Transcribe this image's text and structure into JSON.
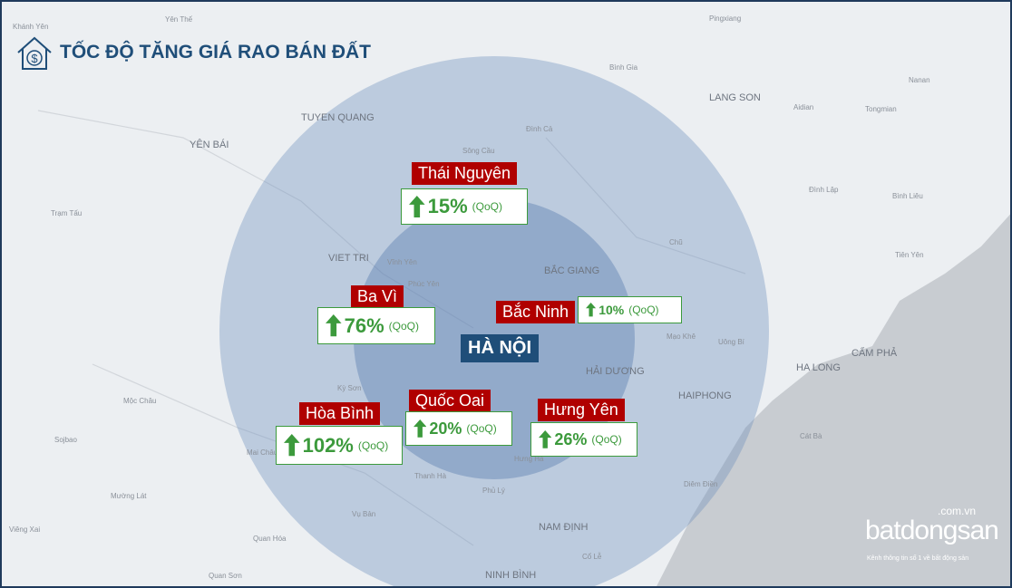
{
  "header": {
    "title": "TỐC ĐỘ TĂNG GIÁ RAO BÁN ĐẤT",
    "icon_symbol": "$"
  },
  "center_label": "HÀ NỘI",
  "regions": [
    {
      "name": "Thái Nguyên",
      "change": "15%",
      "period": "(QoQ)"
    },
    {
      "name": "Ba Vì",
      "change": "76%",
      "period": "(QoQ)"
    },
    {
      "name": "Bắc Ninh",
      "change": "10%",
      "period": "(QoQ)"
    },
    {
      "name": "Hòa Bình",
      "change": "102%",
      "period": "(QoQ)"
    },
    {
      "name": "Quốc Oai",
      "change": "20%",
      "period": "(QoQ)"
    },
    {
      "name": "Hưng Yên",
      "change": "26%",
      "period": "(QoQ)"
    }
  ],
  "map_labels": [
    "TUYEN QUANG",
    "YÊN BÁI",
    "VIET TRI",
    "BẮC GIANG",
    "HẢI DƯƠNG",
    "HAIPHONG",
    "CẨM PHẢ",
    "HA LONG",
    "NAM ĐỊNH",
    "NINH BÌNH",
    "LANG SON",
    "Bình Gia",
    "Đình Cả",
    "Sông Cầu",
    "Vĩnh Yên",
    "Phúc Yên",
    "Chũ",
    "Uông Bí",
    "Mạo Khê",
    "Kỳ Sơn",
    "Mộc Châu",
    "Mai Châu",
    "Vụ Bản",
    "Phủ Lý",
    "Thanh Hà",
    "Mường Lát",
    "Sojbao",
    "Viêng Xai",
    "Quan Sơn",
    "Quan Hóa",
    "Trạm Tấu",
    "Tiên Yên",
    "Đình Lập",
    "Bình Liêu",
    "Cát Bà",
    "Diêm Điền",
    "Cổ Lễ",
    "Hưng Hà",
    "Tongmian",
    "Pingxiang",
    "Nanan",
    "Aidian",
    "Khánh Yên",
    "Yên Thế"
  ],
  "logo": {
    "domain": ".com.vn",
    "brand": "batdongsan",
    "tagline": "Kênh thông tin số 1 về bất động sản"
  }
}
